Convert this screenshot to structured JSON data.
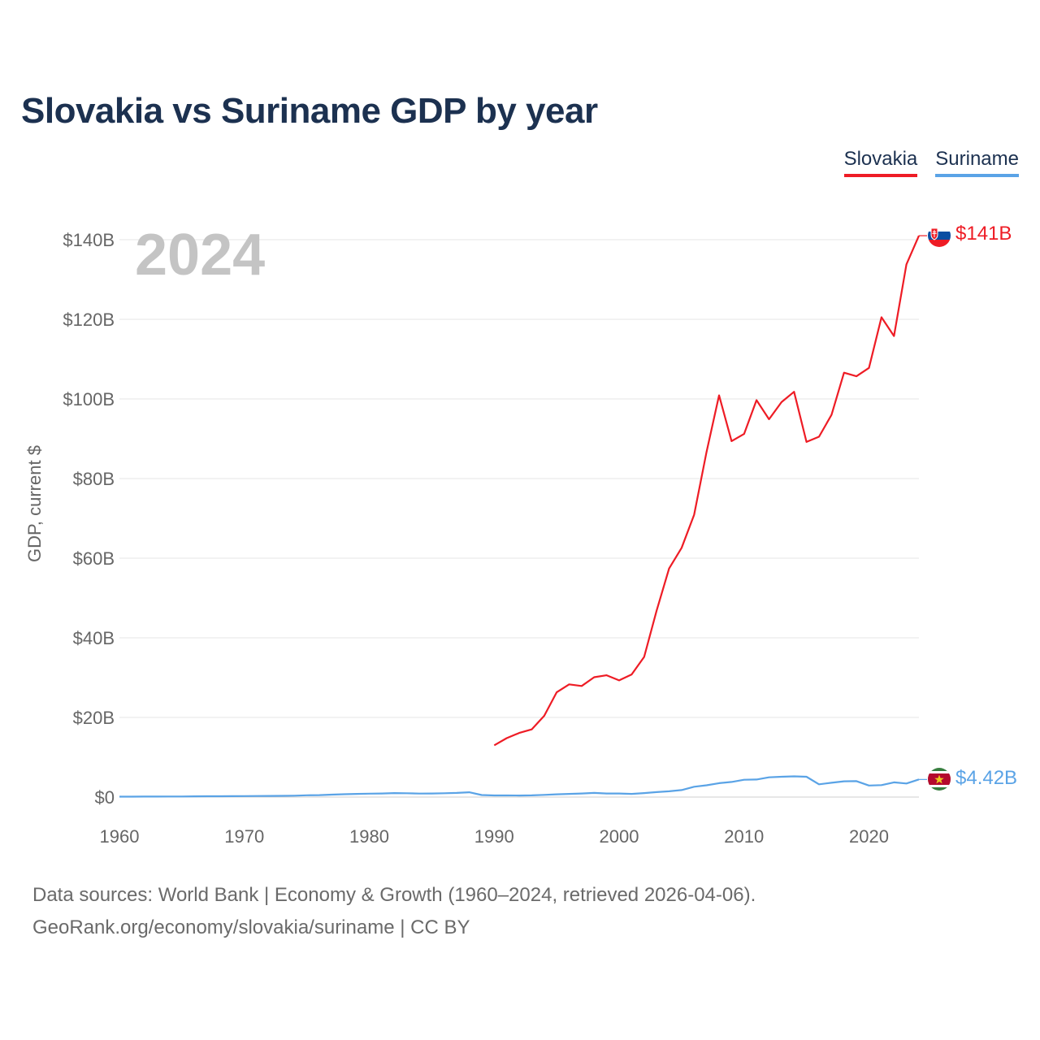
{
  "title": "Slovakia vs Suriname GDP by year",
  "year_label": "2024",
  "chart_data": {
    "type": "line",
    "title": "Slovakia vs Suriname GDP by year",
    "ylabel": "GDP, current $",
    "xlabel": "",
    "xlim": [
      1960,
      2024
    ],
    "ylim": [
      0,
      150
    ],
    "y_unit": "billions USD",
    "xticks": [
      1960,
      1970,
      1980,
      1990,
      2000,
      2010,
      2020
    ],
    "xtick_labels": [
      "1960",
      "1970",
      "1980",
      "1990",
      "2000",
      "2010",
      "2020"
    ],
    "yticks": [
      0,
      20,
      40,
      60,
      80,
      100,
      120,
      140
    ],
    "ytick_labels": [
      "$0",
      "$20B",
      "$40B",
      "$60B",
      "$80B",
      "$100B",
      "$120B",
      "$140B"
    ],
    "legend_position": "top-right",
    "series": [
      {
        "name": "Slovakia",
        "color": "#ee1c25",
        "end_label": "$141B",
        "flag": "slovakia-flag",
        "x": [
          1990,
          1991,
          1992,
          1993,
          1994,
          1995,
          1996,
          1997,
          1998,
          1999,
          2000,
          2001,
          2002,
          2003,
          2004,
          2005,
          2006,
          2007,
          2008,
          2009,
          2010,
          2011,
          2012,
          2013,
          2014,
          2015,
          2016,
          2017,
          2018,
          2019,
          2020,
          2021,
          2022,
          2023,
          2024
        ],
        "values": [
          13,
          14.8,
          16.1,
          17,
          20.4,
          26.3,
          28.3,
          27.9,
          30.1,
          30.6,
          29.3,
          30.8,
          35.2,
          46.8,
          57.4,
          62.6,
          70.9,
          86.7,
          100.9,
          89.4,
          91.2,
          99.7,
          94.9,
          99.2,
          101.8,
          89.2,
          90.5,
          96,
          106.6,
          105.7,
          107.8,
          120.5,
          115.8,
          133.8,
          141
        ]
      },
      {
        "name": "Suriname",
        "color": "#5aa3e6",
        "end_label": "$4.42B",
        "flag": "suriname-flag",
        "x": [
          1960,
          1961,
          1962,
          1963,
          1964,
          1965,
          1966,
          1967,
          1968,
          1969,
          1970,
          1971,
          1972,
          1973,
          1974,
          1975,
          1976,
          1977,
          1978,
          1979,
          1980,
          1981,
          1982,
          1983,
          1984,
          1985,
          1986,
          1987,
          1988,
          1989,
          1990,
          1991,
          1992,
          1993,
          1994,
          1995,
          1996,
          1997,
          1998,
          1999,
          2000,
          2001,
          2002,
          2003,
          2004,
          2005,
          2006,
          2007,
          2008,
          2009,
          2010,
          2011,
          2012,
          2013,
          2014,
          2015,
          2016,
          2017,
          2018,
          2019,
          2020,
          2021,
          2022,
          2023,
          2024
        ],
        "values": [
          0.1,
          0.11,
          0.12,
          0.13,
          0.14,
          0.15,
          0.18,
          0.2,
          0.21,
          0.22,
          0.24,
          0.26,
          0.28,
          0.3,
          0.35,
          0.45,
          0.48,
          0.62,
          0.72,
          0.8,
          0.85,
          0.9,
          1.0,
          0.95,
          0.88,
          0.9,
          0.95,
          1.05,
          1.2,
          0.5,
          0.4,
          0.4,
          0.38,
          0.42,
          0.55,
          0.7,
          0.8,
          0.9,
          1.05,
          0.9,
          0.9,
          0.8,
          1.0,
          1.25,
          1.45,
          1.75,
          2.6,
          2.95,
          3.5,
          3.8,
          4.35,
          4.4,
          4.95,
          5.1,
          5.2,
          5.1,
          3.2,
          3.6,
          3.95,
          4.0,
          2.9,
          3.0,
          3.7,
          3.4,
          4.42
        ]
      }
    ]
  },
  "source_line1": "Data sources: World Bank | Economy & Growth (1960–2024, retrieved 2026-04-06).",
  "source_line2": "GeoRank.org/economy/slovakia/suriname | CC BY"
}
